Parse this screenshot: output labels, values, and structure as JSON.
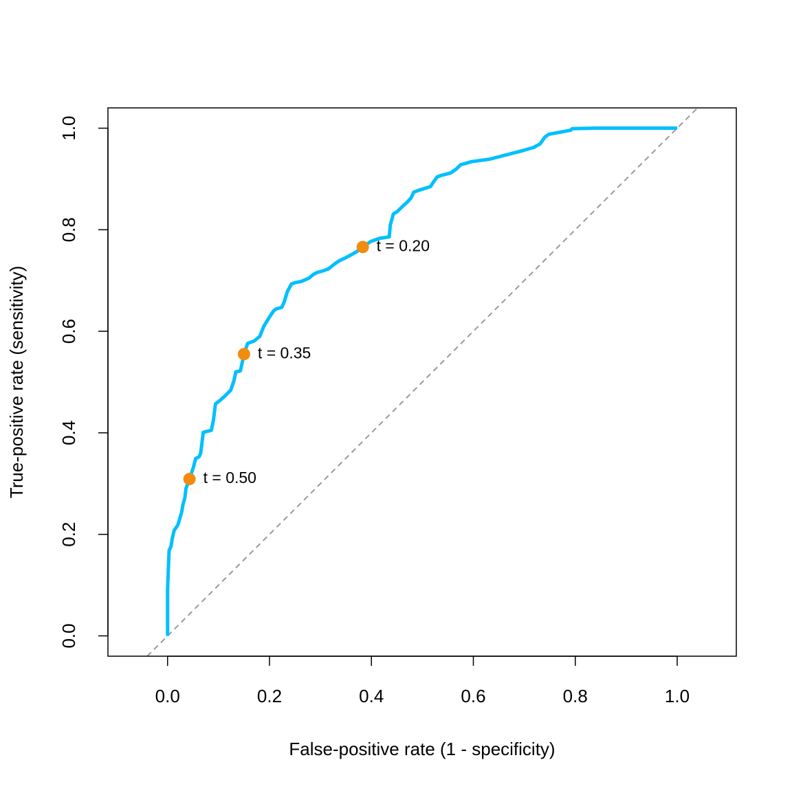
{
  "chart_data": {
    "type": "line",
    "x_label": "False-positive rate (1 - specificity)",
    "y_label": "True-positive rate (sensitivity)",
    "xlim": [
      -0.117,
      1.116
    ],
    "ylim": [
      -0.04,
      1.04
    ],
    "xticks": [
      {
        "value": 0,
        "label": "0.0"
      },
      0.2,
      0.4,
      0.6,
      0.8,
      {
        "value": 1,
        "label": "1.0"
      }
    ],
    "yticks": [
      {
        "value": 0,
        "label": "0.0"
      },
      0.2,
      0.4,
      0.6,
      0.8,
      {
        "value": 1,
        "label": "1.0"
      }
    ],
    "diagonal": true,
    "diagonal_color": "#999999",
    "series": [
      {
        "color": "#00bfff",
        "x": [
          0,
          0,
          0.003,
          0.007,
          0.009,
          0.013,
          0.02,
          0.024,
          0.028,
          0.03,
          0.034,
          0.036,
          0.043,
          0.051,
          0.055,
          0.062,
          0.065,
          0.067,
          0.07,
          0.086,
          0.09,
          0.094,
          0.103,
          0.111,
          0.119,
          0.124,
          0.13,
          0.134,
          0.143,
          0.15,
          0.157,
          0.17,
          0.181,
          0.189,
          0.2,
          0.208,
          0.213,
          0.224,
          0.229,
          0.235,
          0.243,
          0.251,
          0.262,
          0.278,
          0.286,
          0.294,
          0.305,
          0.316,
          0.327,
          0.337,
          0.348,
          0.359,
          0.37,
          0.383,
          0.399,
          0.416,
          0.435,
          0.437,
          0.443,
          0.451,
          0.462,
          0.47,
          0.478,
          0.483,
          0.491,
          0.516,
          0.521,
          0.529,
          0.537,
          0.556,
          0.567,
          0.575,
          0.586,
          0.596,
          0.632,
          0.686,
          0.694,
          0.718,
          0.731,
          0.74,
          0.748,
          0.791,
          0.794,
          0.839,
          1
        ],
        "values": [
          0,
          0.092,
          0.168,
          0.177,
          0.191,
          0.208,
          0.218,
          0.231,
          0.245,
          0.258,
          0.272,
          0.29,
          0.309,
          0.333,
          0.349,
          0.353,
          0.36,
          0.376,
          0.401,
          0.405,
          0.425,
          0.457,
          0.464,
          0.471,
          0.479,
          0.484,
          0.502,
          0.52,
          0.522,
          0.555,
          0.576,
          0.581,
          0.59,
          0.61,
          0.628,
          0.64,
          0.644,
          0.647,
          0.658,
          0.678,
          0.693,
          0.696,
          0.698,
          0.705,
          0.712,
          0.716,
          0.719,
          0.723,
          0.732,
          0.739,
          0.744,
          0.75,
          0.756,
          0.766,
          0.777,
          0.783,
          0.786,
          0.809,
          0.831,
          0.836,
          0.847,
          0.854,
          0.863,
          0.874,
          0.877,
          0.885,
          0.893,
          0.904,
          0.907,
          0.912,
          0.92,
          0.928,
          0.931,
          0.934,
          0.939,
          0.953,
          0.955,
          0.962,
          0.969,
          0.982,
          0.988,
          0.996,
          0.999,
          1,
          1
        ]
      }
    ],
    "points": {
      "color": "#f28c0f",
      "x": [
        0.043,
        0.15,
        0.383
      ],
      "values": [
        0.309,
        0.555,
        0.766
      ],
      "labels": [
        "t = 0.50",
        "t = 0.35",
        "t = 0.20"
      ]
    }
  }
}
